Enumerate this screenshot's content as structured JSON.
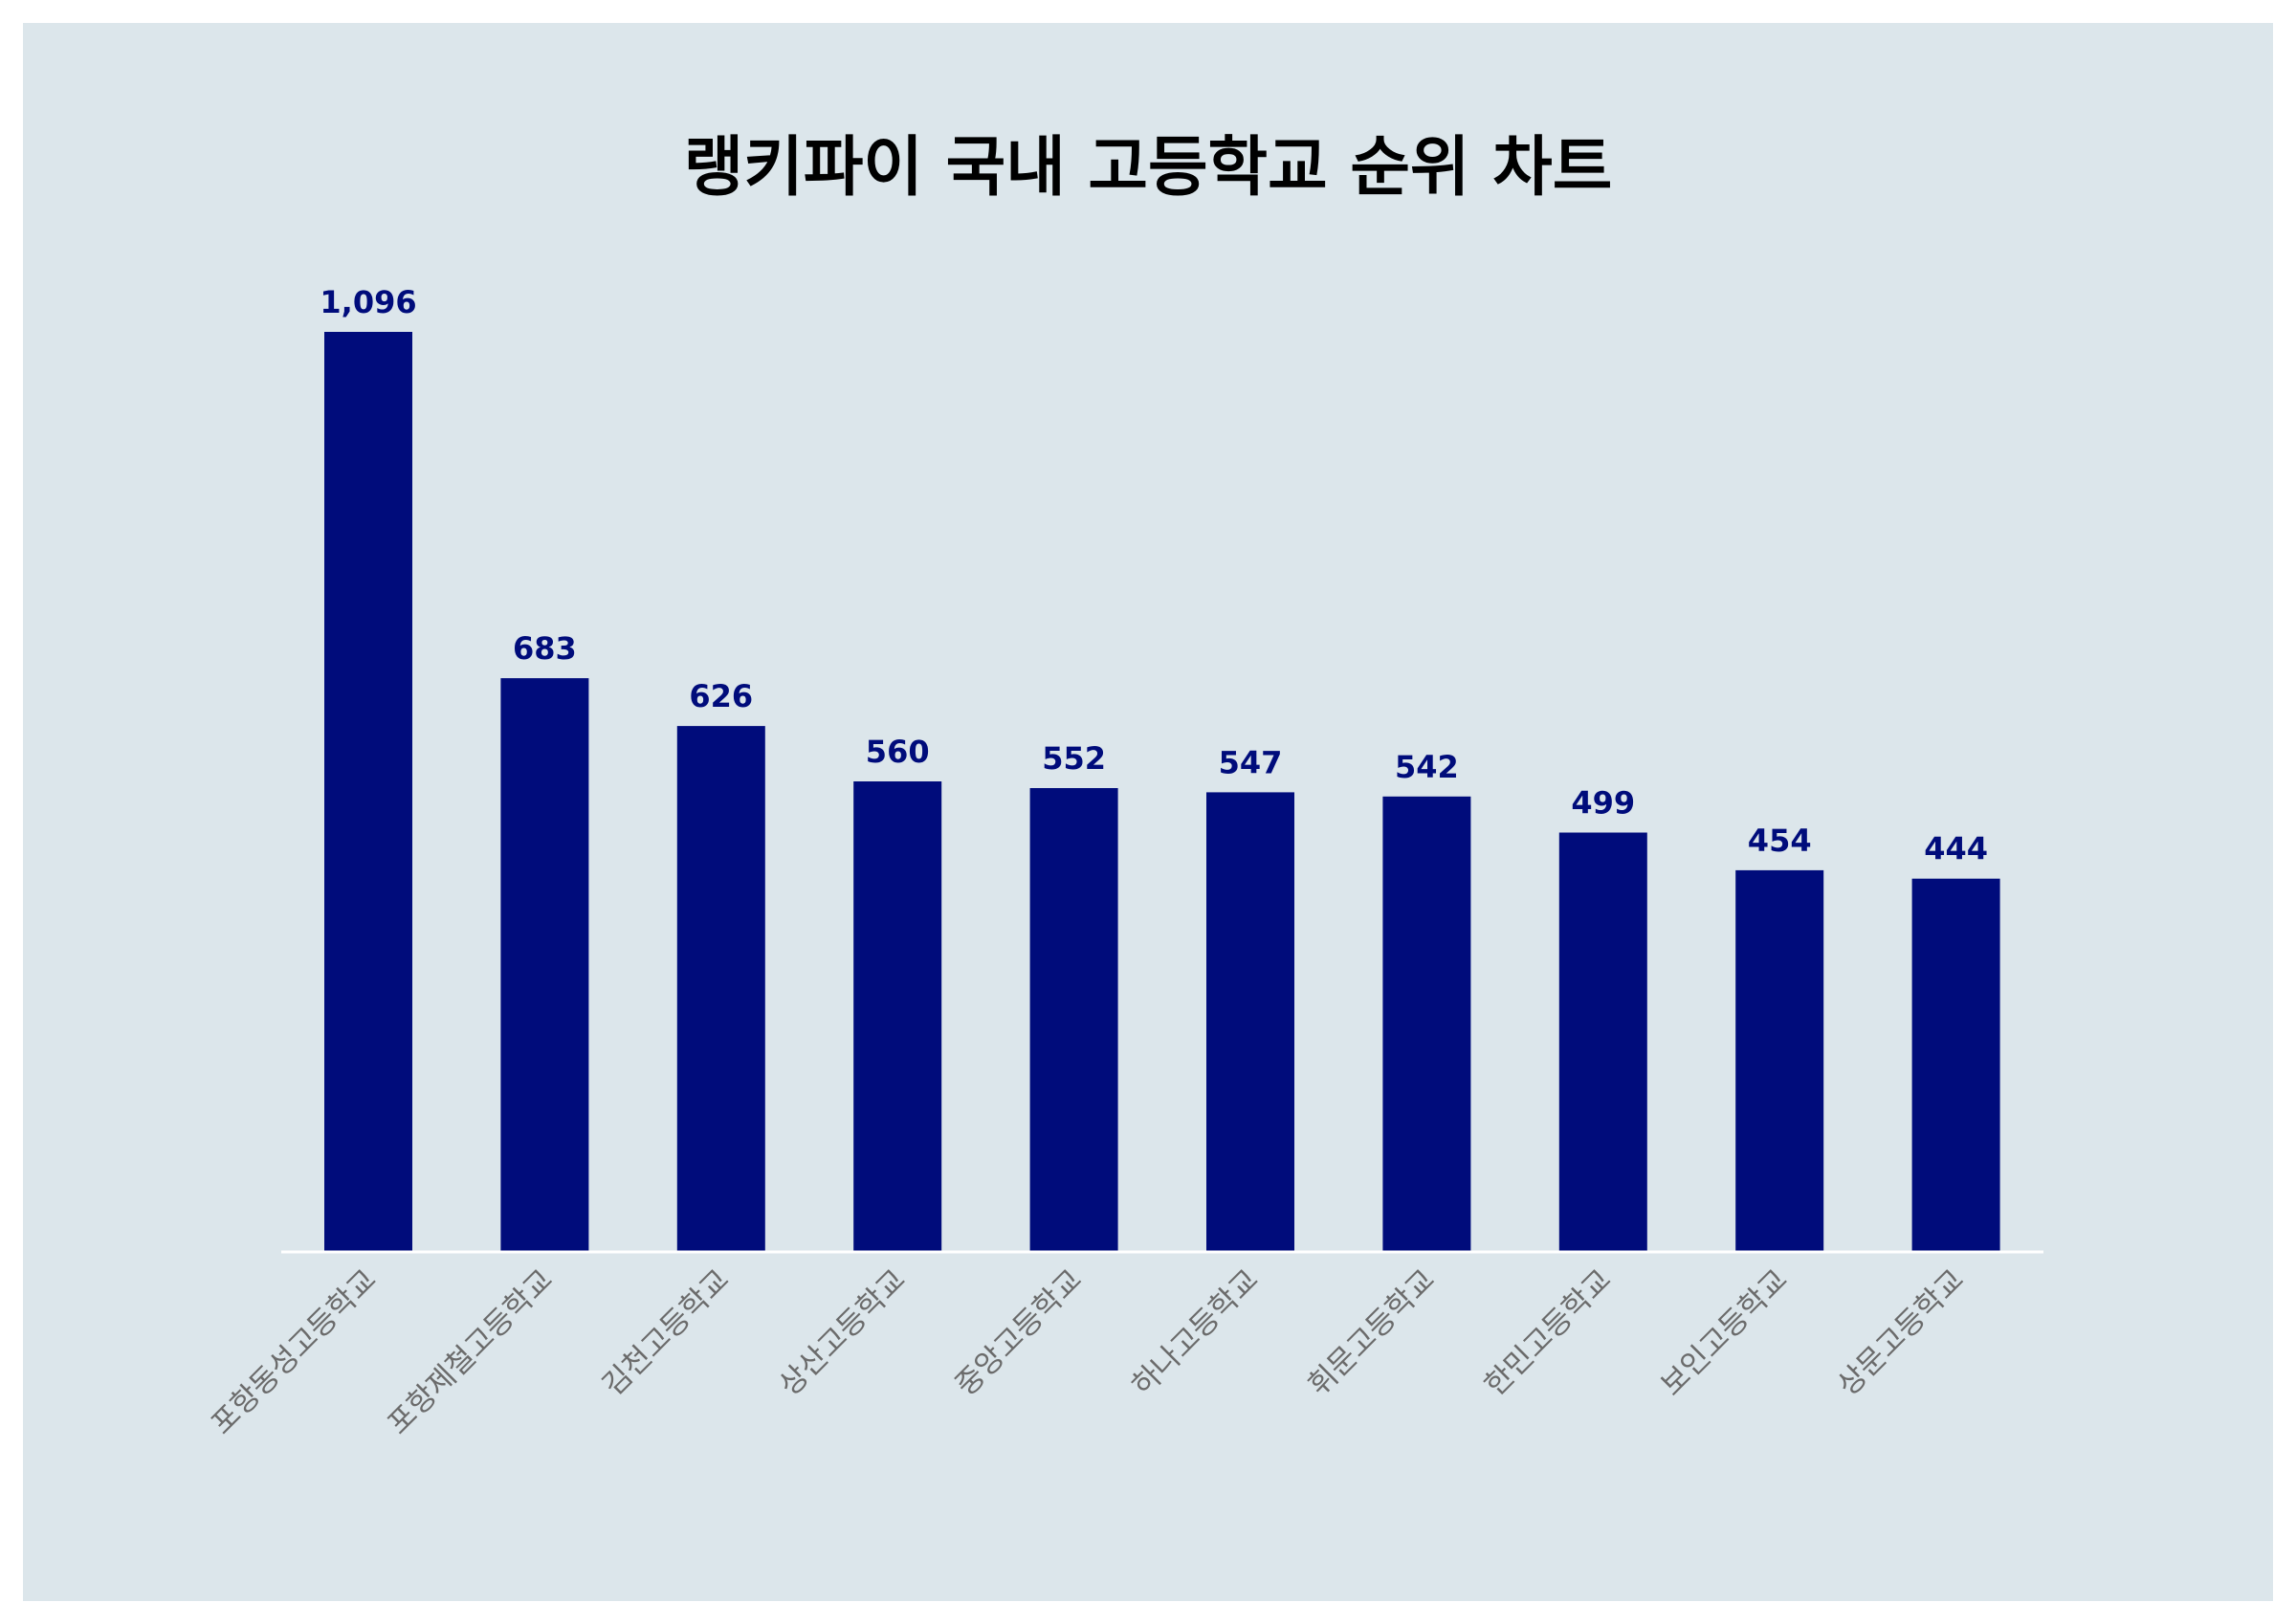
{
  "chart_data": {
    "type": "bar",
    "title": "랭키파이 국내 고등학교 순위 차트",
    "xlabel": "",
    "ylabel": "",
    "categories": [
      "포항동성고등학교",
      "포항제철고등학교",
      "김천고등학교",
      "상산고등학교",
      "중앙고등학교",
      "하나고등학교",
      "휘문고등학교",
      "한민고등학교",
      "보인고등학교",
      "상문고등학교"
    ],
    "values": [
      1096,
      683,
      626,
      560,
      552,
      547,
      542,
      499,
      454,
      444
    ],
    "value_labels": [
      "1,096",
      "683",
      "626",
      "560",
      "552",
      "547",
      "542",
      "499",
      "454",
      "444"
    ],
    "ylim": [
      0,
      1096
    ],
    "grid": false,
    "legend": "none"
  },
  "colors": {
    "background": "#dce6eb",
    "bar": "#000c7b",
    "value_label": "#000c7b",
    "tick_label": "#6b6b6b",
    "axis_line": "#ffffff",
    "title": "#000000"
  }
}
